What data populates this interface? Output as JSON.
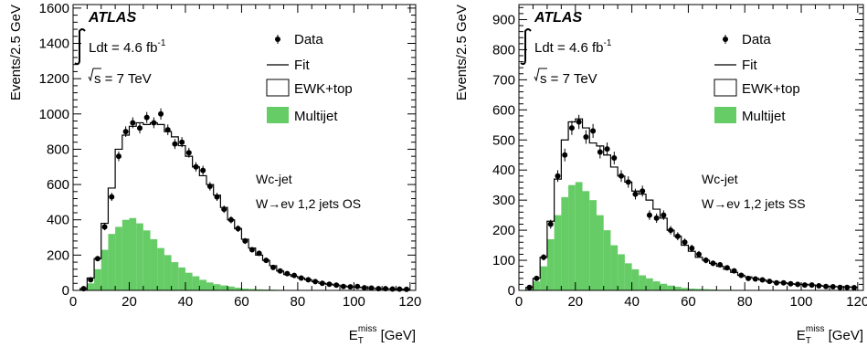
{
  "chart_data": [
    {
      "type": "histogram",
      "experiment": "ATLAS",
      "lumi_text": "Ldt = 4.6 fb",
      "lumi_exp": "-1",
      "energy_text": "s = 7 TeV",
      "ylabel": "Events/2.5 GeV",
      "xlabel_main": "E",
      "xlabel_sub": "T",
      "xlabel_sup": "miss",
      "xlabel_unit": " [GeV]",
      "ann1": "Wc-jet",
      "ann2": "W→eν 1,2 jets  OS",
      "legend": [
        "Data",
        "Fit",
        "EWK+top",
        "Multijet"
      ],
      "xlim": [
        0,
        122
      ],
      "ylim": [
        0,
        1620
      ],
      "bin_width": 2.5,
      "xticks": [
        0,
        20,
        40,
        60,
        80,
        100,
        120
      ],
      "yticks": [
        0,
        200,
        400,
        600,
        800,
        1000,
        1200,
        1400,
        1600
      ],
      "colors": {
        "multijet": "#66cc66"
      },
      "bin_low": [
        2.5,
        5,
        7.5,
        10,
        12.5,
        15,
        17.5,
        20,
        22.5,
        25,
        27.5,
        30,
        32.5,
        35,
        37.5,
        40,
        42.5,
        45,
        47.5,
        50,
        52.5,
        55,
        57.5,
        60,
        62.5,
        65,
        67.5,
        70,
        72.5,
        75,
        77.5,
        80,
        82.5,
        85,
        87.5,
        90,
        92.5,
        95,
        97.5,
        100,
        102.5,
        105,
        107.5,
        110,
        112.5,
        115,
        117.5
      ],
      "fit": [
        10,
        70,
        180,
        380,
        580,
        800,
        880,
        930,
        950,
        940,
        950,
        940,
        900,
        870,
        820,
        760,
        700,
        650,
        600,
        540,
        470,
        400,
        350,
        290,
        240,
        200,
        170,
        140,
        110,
        90,
        80,
        70,
        60,
        50,
        40,
        35,
        30,
        25,
        20,
        18,
        15,
        12,
        10,
        9,
        8,
        7,
        6
      ],
      "multijet": [
        5,
        40,
        120,
        230,
        320,
        360,
        400,
        410,
        380,
        340,
        290,
        240,
        200,
        160,
        130,
        100,
        80,
        60,
        45,
        35,
        28,
        22,
        15,
        10,
        8,
        6,
        5,
        4,
        3,
        2,
        2,
        1,
        1,
        1,
        1,
        0,
        0,
        0,
        0,
        0,
        0,
        0,
        0,
        0,
        0,
        0,
        0
      ],
      "data_x": [
        3.75,
        6.25,
        8.75,
        11.25,
        13.75,
        16.25,
        18.75,
        21.25,
        23.75,
        26.25,
        28.75,
        31.25,
        33.75,
        36.25,
        38.75,
        41.25,
        43.75,
        46.25,
        48.75,
        51.25,
        53.75,
        56.25,
        58.75,
        61.25,
        63.75,
        66.25,
        68.75,
        71.25,
        73.75,
        76.25,
        78.75,
        81.25,
        83.75,
        86.25,
        88.75,
        91.25,
        93.75,
        96.25,
        98.75,
        101.25,
        103.75,
        106.25,
        108.75,
        111.25,
        113.75,
        116.25,
        118.75
      ],
      "data_y": [
        10,
        60,
        180,
        360,
        530,
        760,
        900,
        950,
        920,
        980,
        950,
        1000,
        910,
        830,
        840,
        780,
        700,
        680,
        590,
        530,
        460,
        400,
        350,
        280,
        230,
        210,
        170,
        130,
        110,
        95,
        85,
        70,
        60,
        50,
        40,
        35,
        30,
        22,
        20,
        22,
        15,
        13,
        10,
        10,
        8,
        7,
        6
      ]
    },
    {
      "type": "histogram",
      "experiment": "ATLAS",
      "lumi_text": "Ldt = 4.6 fb",
      "lumi_exp": "-1",
      "energy_text": "s = 7 TeV",
      "ylabel": "Events/2.5 GeV",
      "xlabel_main": "E",
      "xlabel_sub": "T",
      "xlabel_sup": "miss",
      "xlabel_unit": " [GeV]",
      "ann1": "Wc-jet",
      "ann2": "W→eν 1,2 jets  SS",
      "legend": [
        "Data",
        "Fit",
        "EWK+top",
        "Multijet"
      ],
      "xlim": [
        0,
        122
      ],
      "ylim": [
        0,
        950
      ],
      "bin_width": 2.5,
      "xticks": [
        0,
        20,
        40,
        60,
        80,
        100,
        120
      ],
      "yticks": [
        0,
        100,
        200,
        300,
        400,
        500,
        600,
        700,
        800,
        900
      ],
      "colors": {
        "multijet": "#66cc66"
      },
      "bin_low": [
        2.5,
        5,
        7.5,
        10,
        12.5,
        15,
        17.5,
        20,
        22.5,
        25,
        27.5,
        30,
        32.5,
        35,
        37.5,
        40,
        42.5,
        45,
        47.5,
        50,
        52.5,
        55,
        57.5,
        60,
        62.5,
        65,
        67.5,
        70,
        72.5,
        75,
        77.5,
        80,
        82.5,
        85,
        87.5,
        90,
        92.5,
        95,
        97.5,
        100,
        102.5,
        105,
        107.5,
        110,
        112.5,
        115,
        117.5
      ],
      "fit": [
        10,
        40,
        110,
        230,
        370,
        500,
        560,
        570,
        540,
        490,
        480,
        450,
        410,
        380,
        360,
        330,
        320,
        300,
        270,
        240,
        200,
        180,
        150,
        130,
        110,
        100,
        90,
        80,
        70,
        60,
        50,
        45,
        40,
        35,
        30,
        27,
        25,
        22,
        20,
        20,
        18,
        16,
        14,
        13,
        12,
        12,
        10
      ],
      "multijet": [
        5,
        30,
        80,
        170,
        250,
        310,
        350,
        360,
        330,
        300,
        250,
        200,
        150,
        120,
        90,
        70,
        50,
        40,
        30,
        22,
        16,
        12,
        8,
        6,
        5,
        4,
        3,
        2,
        2,
        1,
        1,
        1,
        1,
        1,
        0,
        0,
        0,
        0,
        0,
        0,
        0,
        0,
        0,
        0,
        0,
        0,
        0
      ],
      "data_x": [
        3.75,
        6.25,
        8.75,
        11.25,
        13.75,
        16.25,
        18.75,
        21.25,
        23.75,
        26.25,
        28.75,
        31.25,
        33.75,
        36.25,
        38.75,
        41.25,
        43.75,
        46.25,
        48.75,
        51.25,
        53.75,
        56.25,
        58.75,
        61.25,
        63.75,
        66.25,
        68.75,
        71.25,
        73.75,
        76.25,
        78.75,
        81.25,
        83.75,
        86.25,
        88.75,
        91.25,
        93.75,
        96.25,
        98.75,
        101.25,
        103.75,
        106.25,
        108.75,
        111.25,
        113.75,
        116.25,
        118.75
      ],
      "data_y": [
        10,
        40,
        110,
        220,
        380,
        450,
        540,
        560,
        510,
        530,
        460,
        470,
        440,
        380,
        360,
        320,
        330,
        250,
        240,
        250,
        200,
        180,
        160,
        140,
        120,
        100,
        90,
        85,
        75,
        65,
        50,
        40,
        38,
        35,
        30,
        25,
        25,
        22,
        20,
        18,
        18,
        15,
        13,
        12,
        10,
        10,
        9
      ]
    }
  ]
}
